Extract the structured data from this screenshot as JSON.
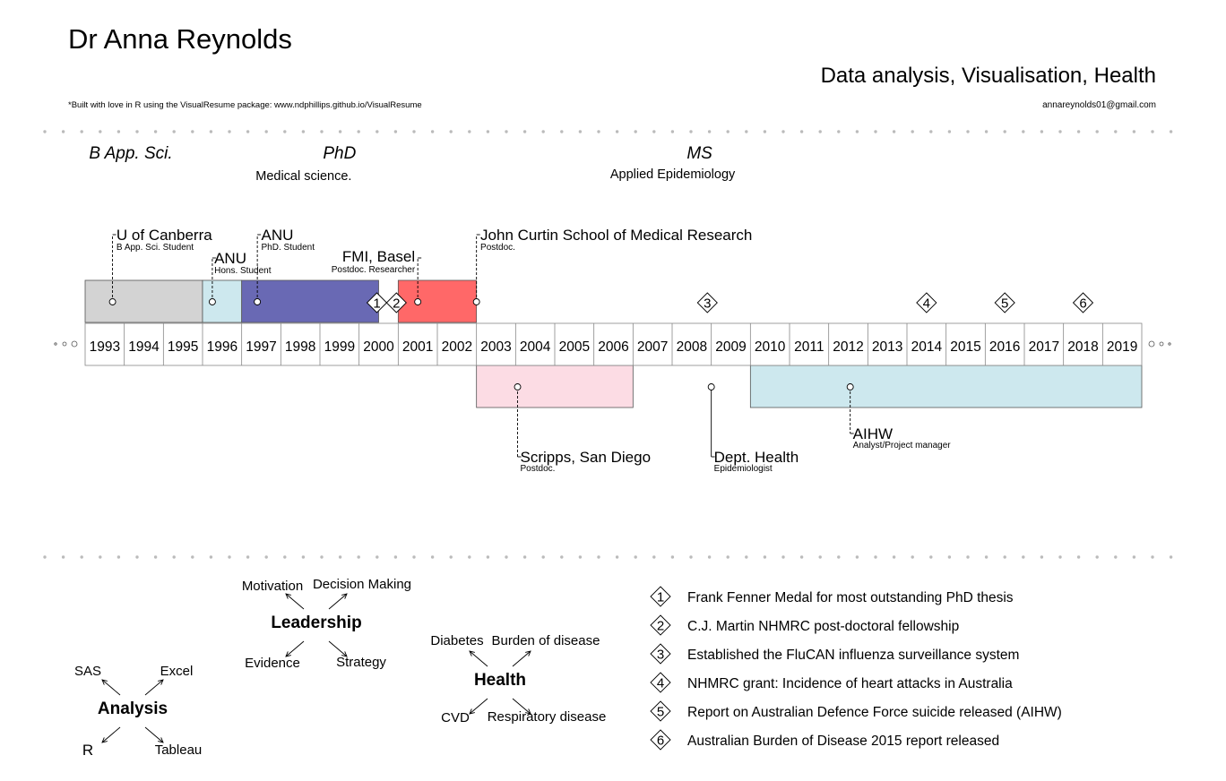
{
  "header": {
    "name": "Dr Anna Reynolds",
    "tagline": "Data analysis, Visualisation, Health",
    "built_with": "*Built with love in R using the VisualResume package: www.ndphillips.github.io/VisualResume",
    "email": "annareynolds01@gmail.com"
  },
  "chart_data": {
    "type": "timeline",
    "years": [
      1993,
      1994,
      1995,
      1996,
      1997,
      1998,
      1999,
      2000,
      2001,
      2002,
      2003,
      2004,
      2005,
      2006,
      2007,
      2008,
      2009,
      2010,
      2011,
      2012,
      2013,
      2014,
      2015,
      2016,
      2017,
      2018,
      2019
    ],
    "degrees": [
      {
        "title": "B App. Sci.",
        "subtitle": "",
        "year": 1993.1
      },
      {
        "title": "PhD",
        "subtitle": "Medical science.",
        "year": 1999.5
      },
      {
        "title": "MS",
        "subtitle": "Applied Epidemiology",
        "year": 2008.7
      }
    ],
    "positions_top": [
      {
        "title": "U of Canberra",
        "sub": "B App. Sci. Student",
        "start": 1993,
        "end": 1996,
        "color": "#d3d3d3",
        "anchor": 1993.7,
        "label_year": 1993.8,
        "level": 0
      },
      {
        "title": "ANU",
        "sub": "Hons. Student",
        "start": 1996,
        "end": 1997,
        "color": "#cde8ee",
        "anchor": 1996.25,
        "label_year": 1996.3,
        "level": 1
      },
      {
        "title": "ANU",
        "sub": "PhD. Student",
        "start": 1997,
        "end": 2000.5,
        "color": "#6969b4",
        "anchor": 1997.4,
        "label_year": 1997.5,
        "level": 0
      },
      {
        "title": "FMI, Basel",
        "sub": "Postdoc. Researcher",
        "start": 2001,
        "end": 2003,
        "color": "#ff6868",
        "anchor": 2001.5,
        "label_year": 2001.5,
        "level": 1,
        "align": "end"
      },
      {
        "title": "John Curtin School of Medical Research",
        "sub": "Postdoc.",
        "start": 2001,
        "end": 2003,
        "color": "#ff6868",
        "anchor": 2003,
        "label_year": 2003.1,
        "level": 0,
        "noRect": true
      }
    ],
    "positions_bottom": [
      {
        "title": "Scripps, San Diego",
        "sub": "Postdoc.",
        "start": 2003,
        "end": 2007,
        "color": "#fcdce4",
        "anchor": 2004.05,
        "label_year": 2004.1,
        "level": 1
      },
      {
        "title": "Dept. Health",
        "sub": "Epidemiologist",
        "start": 2009,
        "end": 2009,
        "color": "none",
        "anchor": 2009,
        "label_year": 2009.1,
        "level": 1
      },
      {
        "title": "AIHW",
        "sub": "Analyst/Project manager",
        "start": 2010,
        "end": 2020,
        "color": "#cde8ee",
        "anchor": 2012.55,
        "label_year": 2012.6,
        "level": 0
      }
    ],
    "milestones": [
      {
        "n": "1",
        "year": 2000.5,
        "text": "Frank Fenner Medal for most outstanding PhD thesis"
      },
      {
        "n": "2",
        "year": 2001,
        "text": "C.J. Martin NHMRC post-doctoral fellowship"
      },
      {
        "n": "3",
        "year": 2008.9,
        "text": "Established the FluCAN influenza surveillance system"
      },
      {
        "n": "4",
        "year": 2014.5,
        "text": "NHMRC grant: Incidence of heart attacks in Australia"
      },
      {
        "n": "5",
        "year": 2016.5,
        "text": "Report on Australian Defence Force suicide released (AIHW)"
      },
      {
        "n": "6",
        "year": 2018.5,
        "text": "Australian Burden of Disease 2015 report released"
      }
    ],
    "skills": [
      {
        "center": "Analysis",
        "items": [
          "SAS",
          "Excel",
          "R",
          "Tableau"
        ]
      },
      {
        "center": "Leadership",
        "items": [
          "Motivation",
          "Decision Making",
          "Evidence",
          "Strategy"
        ]
      },
      {
        "center": "Health",
        "items": [
          "Diabetes",
          "Burden of disease",
          "CVD",
          "Respiratory disease"
        ]
      }
    ]
  }
}
